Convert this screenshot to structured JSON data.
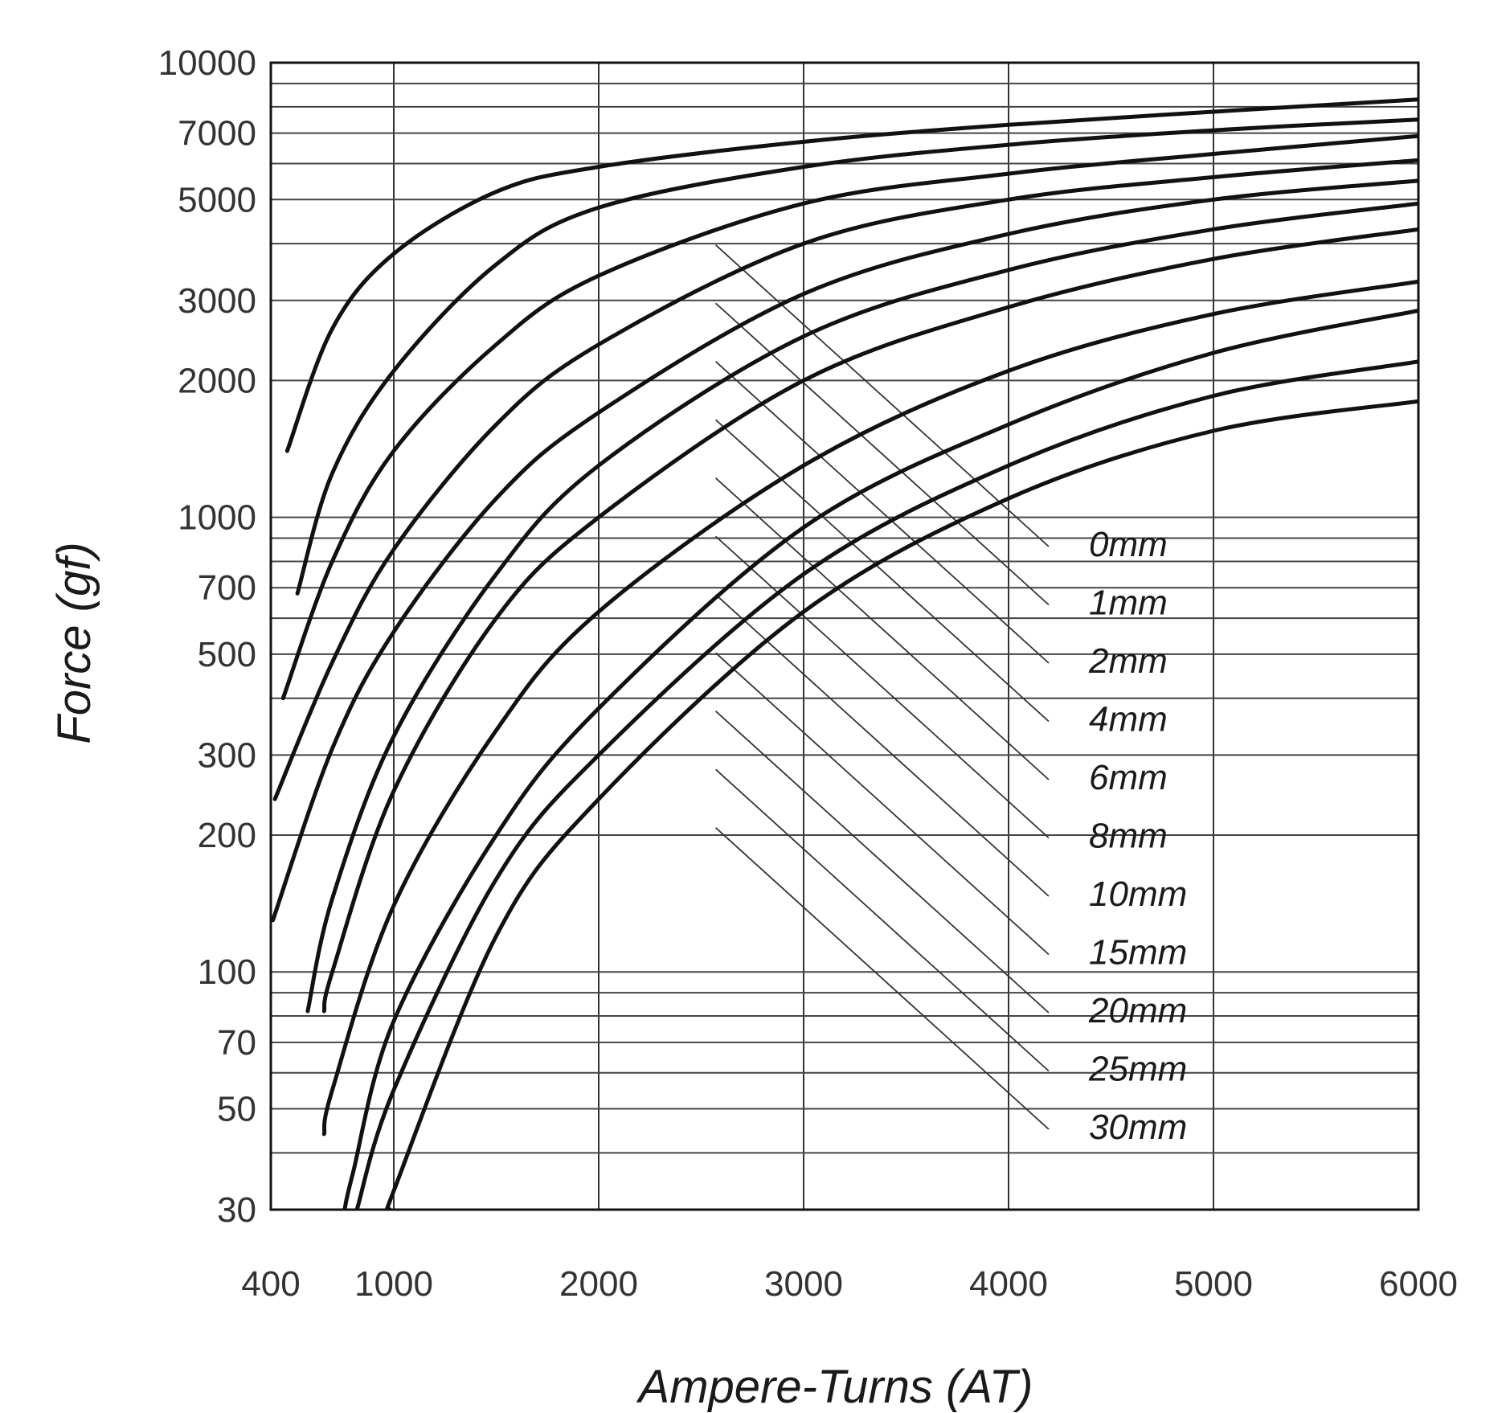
{
  "chart_data": {
    "type": "line",
    "xlabel": "Ampere-Turns (AT)",
    "ylabel": "Force (gf)",
    "xlim": [
      400,
      6000
    ],
    "ylim": [
      30,
      10000
    ],
    "yscale": "log",
    "grid": true,
    "legend": "right-middle, leader lines from curves",
    "xticks": [
      400,
      1000,
      2000,
      3000,
      4000,
      5000,
      6000
    ],
    "xtick_labels": [
      "400",
      "1000",
      "2000",
      "3000",
      "4000",
      "5000",
      "6000"
    ],
    "yticks": [
      30,
      50,
      70,
      100,
      200,
      300,
      500,
      700,
      1000,
      2000,
      3000,
      5000,
      7000,
      10000
    ],
    "ytick_labels": [
      "30",
      "50",
      "70",
      "100",
      "200",
      "300",
      "500",
      "700",
      "1000",
      "2000",
      "3000",
      "5000",
      "7000",
      "10000"
    ],
    "series": [
      {
        "name": "0mm",
        "x": [
          480,
          700,
          1000,
          1500,
          2000,
          3000,
          4000,
          5000,
          6000
        ],
        "y": [
          1400,
          2600,
          3800,
          5200,
          5900,
          6700,
          7300,
          7800,
          8300
        ]
      },
      {
        "name": "1mm",
        "x": [
          530,
          700,
          1000,
          1500,
          2000,
          3000,
          4000,
          5000,
          6000
        ],
        "y": [
          680,
          1250,
          2100,
          3600,
          4800,
          5900,
          6600,
          7100,
          7500
        ]
      },
      {
        "name": "2mm",
        "x": [
          460,
          700,
          1000,
          1500,
          2000,
          3000,
          4000,
          5000,
          6000
        ],
        "y": [
          400,
          800,
          1400,
          2400,
          3400,
          4900,
          5700,
          6300,
          6900
        ]
      },
      {
        "name": "4mm",
        "x": [
          420,
          700,
          1000,
          1500,
          2000,
          3000,
          4000,
          5000,
          6000
        ],
        "y": [
          240,
          480,
          850,
          1600,
          2400,
          4000,
          5000,
          5600,
          6100
        ]
      },
      {
        "name": "6mm",
        "x": [
          410,
          700,
          1000,
          1500,
          2000,
          3000,
          4000,
          5000,
          6000
        ],
        "y": [
          130,
          310,
          560,
          1100,
          1700,
          3100,
          4200,
          5000,
          5500
        ]
      },
      {
        "name": "8mm",
        "x": [
          580,
          700,
          1000,
          1500,
          2000,
          3000,
          4000,
          5000,
          6000
        ],
        "y": [
          82,
          145,
          330,
          750,
          1300,
          2500,
          3500,
          4300,
          4900
        ]
      },
      {
        "name": "10mm",
        "x": [
          660,
          700,
          1000,
          1500,
          2000,
          3000,
          4000,
          5000,
          6000
        ],
        "y": [
          82,
          100,
          250,
          600,
          1000,
          2000,
          2900,
          3700,
          4300
        ]
      },
      {
        "name": "15mm",
        "x": [
          660,
          700,
          1000,
          1500,
          2000,
          3000,
          4000,
          5000,
          6000
        ],
        "y": [
          44,
          55,
          140,
          340,
          620,
          1300,
          2100,
          2800,
          3300
        ]
      },
      {
        "name": "20mm",
        "x": [
          760,
          800,
          1000,
          1500,
          2000,
          3000,
          4000,
          5000,
          6000
        ],
        "y": [
          30,
          36,
          78,
          200,
          380,
          950,
          1600,
          2300,
          2850
        ]
      },
      {
        "name": "25mm",
        "x": [
          820,
          1000,
          1500,
          2000,
          3000,
          4000,
          5000,
          6000
        ],
        "y": [
          30,
          55,
          160,
          300,
          750,
          1300,
          1850,
          2200
        ]
      },
      {
        "name": "30mm",
        "x": [
          980,
          1000,
          1500,
          2000,
          3000,
          4000,
          5000,
          6000
        ],
        "y": [
          30,
          33,
          120,
          240,
          620,
          1100,
          1550,
          1800
        ]
      }
    ]
  }
}
